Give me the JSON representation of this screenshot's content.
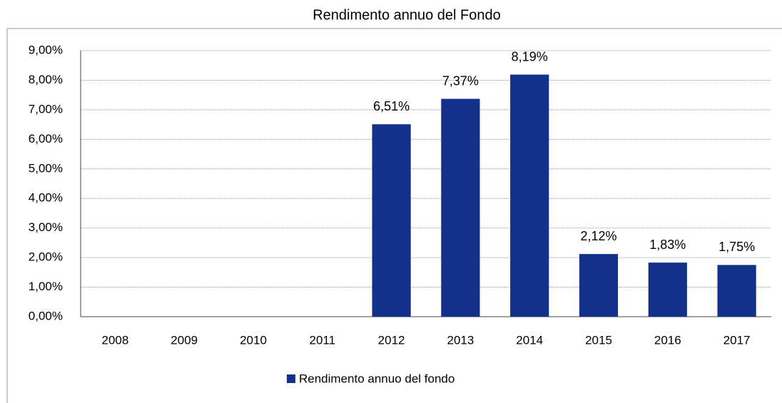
{
  "chart_data": {
    "type": "bar",
    "title": "Rendimento annuo del Fondo",
    "categories": [
      "2008",
      "2009",
      "2010",
      "2011",
      "2012",
      "2013",
      "2014",
      "2015",
      "2016",
      "2017"
    ],
    "series": [
      {
        "name": "Rendimento annuo del fondo",
        "color": "#13318a",
        "values": [
          null,
          null,
          null,
          null,
          6.51,
          7.37,
          8.19,
          2.12,
          1.83,
          1.75
        ],
        "value_labels": [
          null,
          null,
          null,
          null,
          "6,51%",
          "7,37%",
          "8,19%",
          "2,12%",
          "1,83%",
          "1,75%"
        ]
      }
    ],
    "ylim": [
      0,
      9
    ],
    "yticks": [
      {
        "value": 0,
        "label": "0,00%"
      },
      {
        "value": 1,
        "label": "1,00%"
      },
      {
        "value": 2,
        "label": "2,00%"
      },
      {
        "value": 3,
        "label": "3,00%"
      },
      {
        "value": 4,
        "label": "4,00%"
      },
      {
        "value": 5,
        "label": "5,00%"
      },
      {
        "value": 6,
        "label": "6,00%"
      },
      {
        "value": 7,
        "label": "7,00%"
      },
      {
        "value": 8,
        "label": "8,00%"
      },
      {
        "value": 9,
        "label": "9,00%"
      }
    ],
    "grid": true,
    "legend": "bottom"
  }
}
